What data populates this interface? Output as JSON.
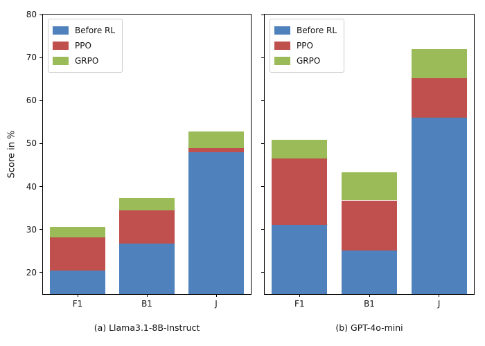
{
  "figure": {
    "background": "#ffffff",
    "spine_color": "#000000",
    "legend_border_color": "#cccccc"
  },
  "chart_data": [
    {
      "type": "bar",
      "stacked": true,
      "title": "(a) Llama3.1-8B-Instruct",
      "ylabel": "Score in %",
      "categories": [
        "F1",
        "B1",
        "J"
      ],
      "series": [
        {
          "name": "Before RL",
          "color": "#4F81BD",
          "values": [
            20.4,
            26.8,
            48.0
          ]
        },
        {
          "name": "PPO",
          "color": "#C0504D",
          "values": [
            7.8,
            7.6,
            1.0
          ]
        },
        {
          "name": "GRPO",
          "color": "#9BBB59",
          "values": [
            2.4,
            3.0,
            3.8
          ]
        }
      ],
      "stack_tops": {
        "before_rl": [
          20.4,
          26.8,
          48.0
        ],
        "ppo": [
          28.2,
          34.4,
          49.0
        ],
        "grpo": [
          30.6,
          37.4,
          52.8
        ]
      },
      "ylim": [
        15,
        80
      ],
      "yticks": [
        20,
        30,
        40,
        50,
        60,
        70,
        80
      ],
      "yticklabels_visible": true,
      "grid": false,
      "legend_position": "upper left"
    },
    {
      "type": "bar",
      "stacked": true,
      "title": "(b) GPT-4o-mini",
      "ylabel": "",
      "categories": [
        "F1",
        "B1",
        "J"
      ],
      "series": [
        {
          "name": "Before RL",
          "color": "#4F81BD",
          "values": [
            31.1,
            25.1,
            56.0
          ]
        },
        {
          "name": "PPO",
          "color": "#C0504D",
          "values": [
            15.4,
            11.7,
            9.2
          ]
        },
        {
          "name": "GRPO",
          "color": "#9BBB59",
          "values": [
            4.4,
            6.5,
            6.8
          ]
        }
      ],
      "stack_tops": {
        "before_rl": [
          31.1,
          25.1,
          56.0
        ],
        "ppo": [
          46.5,
          36.8,
          65.2
        ],
        "grpo": [
          50.9,
          43.3,
          72.0
        ]
      },
      "ylim": [
        15,
        80
      ],
      "yticks": [
        20,
        30,
        40,
        50,
        60,
        70,
        80
      ],
      "yticklabels_visible": false,
      "grid": false,
      "legend_position": "upper left"
    }
  ]
}
